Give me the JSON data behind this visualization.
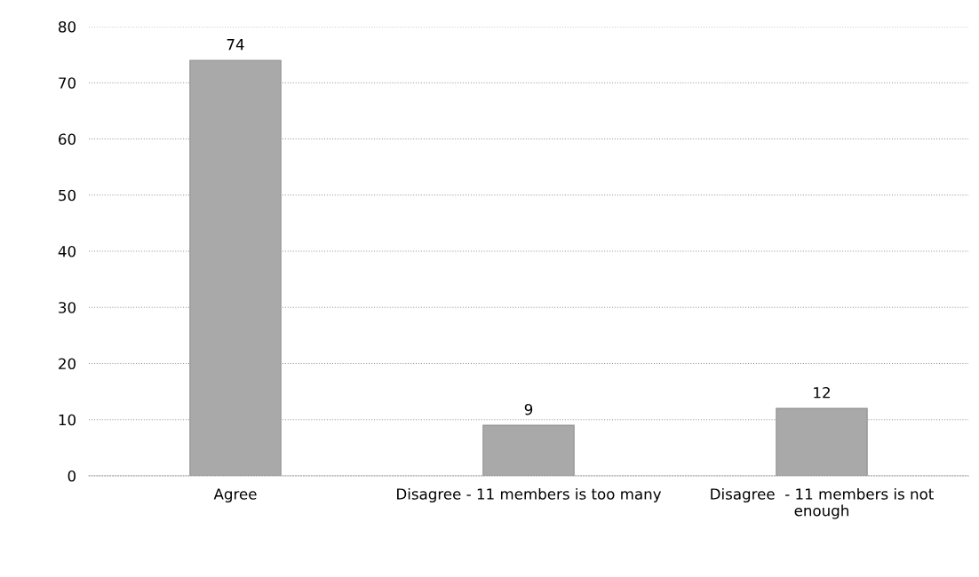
{
  "chart_data": {
    "type": "bar",
    "categories": [
      "Agree",
      "Disagree - 11 members is too many",
      "Disagree  - 11 members is not\nenough"
    ],
    "values": [
      74,
      9,
      12
    ],
    "color": "#a9a9a9",
    "ylim": [
      0,
      80
    ],
    "yticks": [
      0,
      10,
      20,
      30,
      40,
      50,
      60,
      70,
      80
    ],
    "grid": "y",
    "data_labels": true
  }
}
